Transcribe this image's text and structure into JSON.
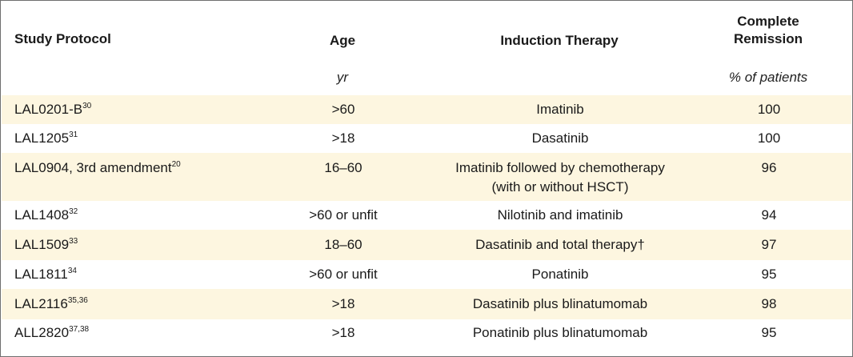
{
  "headers": {
    "study_protocol": "Study Protocol",
    "age": "Age",
    "induction_therapy": "Induction Therapy",
    "complete_remission_1": "Complete",
    "complete_remission_2": "Remission"
  },
  "units": {
    "age": "yr",
    "remission": "% of patients"
  },
  "rows": [
    {
      "protocol": "LAL0201-B",
      "ref": "30",
      "age": ">60",
      "therapy": "Imatinib",
      "therapy_2": "",
      "remission": "100"
    },
    {
      "protocol": "LAL1205",
      "ref": "31",
      "age": ">18",
      "therapy": "Dasatinib",
      "therapy_2": "",
      "remission": "100"
    },
    {
      "protocol": "LAL0904, 3rd amendment",
      "ref": "20",
      "age": "16–60",
      "therapy": "Imatinib followed by chemotherapy",
      "therapy_2": "(with or without HSCT)",
      "remission": "96"
    },
    {
      "protocol": "LAL1408",
      "ref": "32",
      "age": ">60 or unfit",
      "therapy": "Nilotinib and imatinib",
      "therapy_2": "",
      "remission": "94"
    },
    {
      "protocol": "LAL1509",
      "ref": "33",
      "age": "18–60",
      "therapy": "Dasatinib and total therapy†",
      "therapy_2": "",
      "remission": "97"
    },
    {
      "protocol": "LAL1811",
      "ref": "34",
      "age": ">60 or unfit",
      "therapy": "Ponatinib",
      "therapy_2": "",
      "remission": "95"
    },
    {
      "protocol": "LAL2116",
      "ref": "35,36",
      "age": ">18",
      "therapy": "Dasatinib plus blinatumomab",
      "therapy_2": "",
      "remission": "98"
    },
    {
      "protocol": "ALL2820",
      "ref": "37,38",
      "age": ">18",
      "therapy": "Ponatinib plus blinatumomab",
      "therapy_2": "",
      "remission": "95"
    }
  ]
}
